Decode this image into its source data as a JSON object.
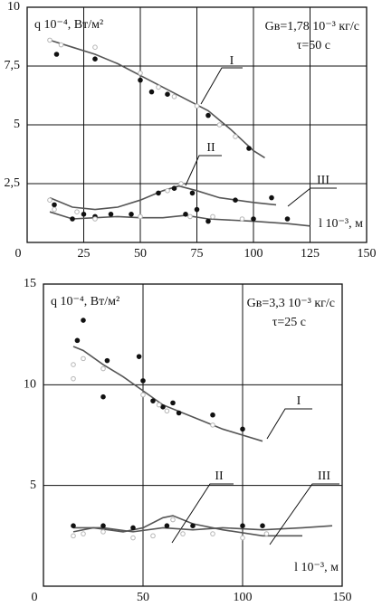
{
  "chart_data": [
    {
      "type": "line",
      "y_label": "q 10⁻⁴, Вт/м²",
      "annotations": [
        "Gв=1,78 10⁻³ кг/с",
        "τ=50 с"
      ],
      "x_label": "l 10⁻³, м",
      "xlim": [
        0,
        150
      ],
      "xticks": [
        0,
        25,
        50,
        75,
        100,
        125,
        150
      ],
      "ylim": [
        0,
        10
      ],
      "yticks": [
        {
          "value": 2.5,
          "label": "2,5"
        },
        5,
        {
          "value": 7.5,
          "label": "7,5"
        },
        10
      ],
      "grid": true,
      "series": [
        {
          "name": "I",
          "style": "line",
          "color": "#555555",
          "x": [
            10,
            20,
            30,
            40,
            50,
            60,
            70,
            80,
            90,
            100,
            105
          ],
          "values": [
            8.6,
            8.3,
            8.0,
            7.6,
            7.1,
            6.6,
            6.1,
            5.6,
            4.8,
            3.9,
            3.6
          ]
        },
        {
          "name": "II",
          "style": "line",
          "color": "#555555",
          "x": [
            10,
            20,
            30,
            40,
            50,
            60,
            67,
            75,
            85,
            100,
            110
          ],
          "values": [
            1.9,
            1.5,
            1.4,
            1.5,
            1.8,
            2.2,
            2.4,
            2.2,
            1.9,
            1.7,
            1.6
          ]
        },
        {
          "name": "III",
          "style": "line",
          "color": "#555555",
          "x": [
            10,
            20,
            30,
            40,
            50,
            60,
            70,
            80,
            100,
            115,
            125
          ],
          "values": [
            1.3,
            1.0,
            1.05,
            1.1,
            1.05,
            1.05,
            1.15,
            1.0,
            0.9,
            0.8,
            0.7
          ]
        },
        {
          "style": "filled",
          "color": "#111111",
          "x": [
            13,
            30,
            50,
            55,
            62,
            80,
            98,
            12,
            20,
            25,
            30,
            37,
            46,
            58,
            65,
            70,
            73,
            75,
            80,
            92,
            100,
            108,
            115
          ],
          "values": [
            8.0,
            7.8,
            6.9,
            6.4,
            6.3,
            5.4,
            4.0,
            1.6,
            1.0,
            1.2,
            1.1,
            1.2,
            1.2,
            2.1,
            2.3,
            1.2,
            2.1,
            1.4,
            0.9,
            1.8,
            1.0,
            1.9,
            1.0
          ]
        },
        {
          "style": "open",
          "color": "#b5b5b5",
          "x": [
            10,
            15,
            30,
            50,
            58,
            65,
            75,
            85,
            92,
            10,
            12,
            22,
            30,
            50,
            62,
            68,
            72,
            82,
            95
          ],
          "values": [
            8.6,
            8.4,
            8.3,
            7.2,
            6.6,
            6.2,
            5.8,
            5.0,
            4.5,
            1.8,
            1.4,
            1.3,
            1.0,
            1.1,
            2.2,
            2.5,
            1.1,
            1.1,
            1.0
          ]
        }
      ]
    },
    {
      "type": "line",
      "y_label": "q 10⁻⁴, Вт/м²",
      "annotations": [
        "Gв=3,3 10⁻³ кг/с",
        "τ=25 с"
      ],
      "x_label": "l 10⁻³, м",
      "xlim": [
        0,
        150
      ],
      "xticks": [
        0,
        50,
        100,
        150
      ],
      "ylim": [
        0,
        15
      ],
      "yticks": [
        5,
        10,
        15
      ],
      "grid": true,
      "series": [
        {
          "name": "I",
          "style": "line",
          "color": "#555555",
          "x": [
            15,
            20,
            30,
            40,
            50,
            60,
            70,
            80,
            90,
            100,
            110
          ],
          "values": [
            11.9,
            11.7,
            11.0,
            10.4,
            9.7,
            9.0,
            8.6,
            8.2,
            7.8,
            7.5,
            7.2
          ]
        },
        {
          "name": "II",
          "style": "line",
          "color": "#555555",
          "x": [
            15,
            25,
            40,
            50,
            60,
            65,
            75,
            90,
            110,
            130
          ],
          "values": [
            2.7,
            2.9,
            2.7,
            2.9,
            3.4,
            3.5,
            3.1,
            2.8,
            2.5,
            2.5
          ]
        },
        {
          "name": "III",
          "style": "line",
          "color": "#555555",
          "x": [
            15,
            30,
            45,
            60,
            75,
            90,
            110,
            130,
            145
          ],
          "values": [
            2.9,
            2.9,
            2.7,
            2.9,
            2.8,
            2.9,
            2.8,
            2.9,
            3.0
          ]
        },
        {
          "style": "filled",
          "color": "#111111",
          "x": [
            17,
            20,
            30,
            32,
            48,
            50,
            55,
            60,
            65,
            68,
            85,
            100,
            15,
            30,
            45,
            62,
            75,
            100,
            110
          ],
          "values": [
            12.2,
            13.2,
            9.4,
            11.2,
            11.4,
            10.2,
            9.2,
            8.9,
            9.1,
            8.6,
            8.5,
            7.8,
            3.0,
            3.0,
            2.9,
            3.0,
            3.0,
            3.0,
            3.0
          ]
        },
        {
          "style": "open",
          "color": "#b5b5b5",
          "x": [
            15,
            15,
            20,
            30,
            50,
            58,
            62,
            85,
            15,
            20,
            30,
            45,
            55,
            65,
            70,
            85,
            100,
            112
          ],
          "values": [
            10.3,
            11.0,
            11.3,
            10.8,
            9.5,
            9.0,
            8.7,
            8.0,
            2.5,
            2.6,
            2.7,
            2.4,
            2.5,
            3.3,
            2.6,
            2.6,
            2.4,
            2.6
          ]
        }
      ]
    }
  ]
}
